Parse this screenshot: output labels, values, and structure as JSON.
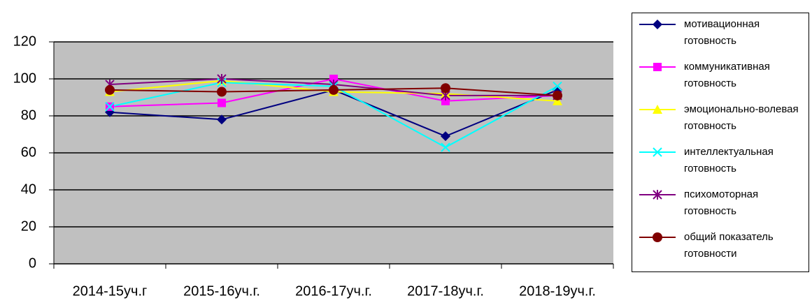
{
  "chart_data": {
    "type": "line",
    "categories": [
      "2014-15уч.г",
      "2015-16уч.г.",
      "2016-17уч.г.",
      "2017-18уч.г.",
      "2018-19уч.г."
    ],
    "series": [
      {
        "name": "мотивационная готовность",
        "color": "#000080",
        "marker": "diamond",
        "values": [
          82,
          78,
          94,
          69,
          94
        ]
      },
      {
        "name": "коммуникативная готовность",
        "color": "#ff00ff",
        "marker": "square",
        "values": [
          85,
          87,
          100,
          88,
          91
        ]
      },
      {
        "name": "эмоционально-волевая готовность",
        "color": "#ffff00",
        "marker": "triangle",
        "values": [
          93,
          99,
          93,
          92,
          88
        ]
      },
      {
        "name": "интеллектуальная готовность",
        "color": "#00ffff",
        "marker": "x",
        "values": [
          85,
          98,
          96,
          63,
          96
        ]
      },
      {
        "name": "психомоторная готовность",
        "color": "#800080",
        "marker": "star",
        "values": [
          97,
          100,
          97,
          91,
          91
        ]
      },
      {
        "name": "общий показатель готовности",
        "color": "#800000",
        "marker": "circle",
        "values": [
          94,
          93,
          94,
          95,
          91
        ]
      }
    ],
    "ylim": [
      0,
      120
    ],
    "yticks": [
      0,
      20,
      40,
      60,
      80,
      100,
      120
    ],
    "grid": true,
    "legend": "right"
  }
}
